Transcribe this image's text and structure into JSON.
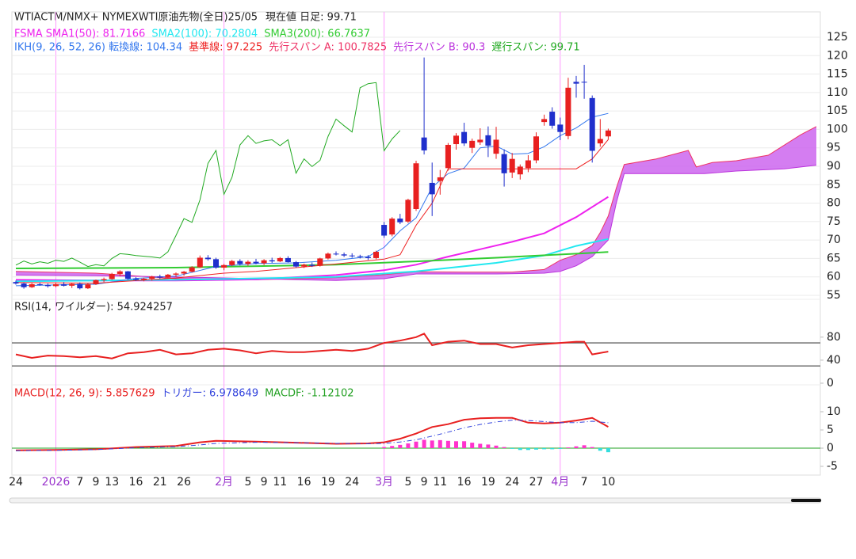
{
  "chart_data": [
    {
      "type": "candlestick",
      "title": "WTIACTM/NMX+ NYMEXWTI原油先物(全日)25/05",
      "price_label": "現在値 日足: 99.71",
      "categories": [
        "24",
        null,
        null,
        null,
        null,
        "2026",
        null,
        null,
        "7",
        null,
        "9",
        null,
        "13",
        null,
        null,
        "16",
        null,
        null,
        "21",
        null,
        null,
        "26",
        null,
        null,
        null,
        null,
        "2月",
        null,
        null,
        "5",
        null,
        "9",
        null,
        "11",
        null,
        null,
        "16",
        null,
        null,
        "19",
        null,
        null,
        "24",
        null,
        null,
        null,
        "3月",
        null,
        null,
        "5",
        null,
        "9",
        null,
        "11",
        null,
        null,
        "16",
        null,
        null,
        "19",
        null,
        null,
        "24",
        null,
        null,
        "27",
        null,
        null,
        "4月",
        null,
        null,
        "7",
        null,
        null,
        "10"
      ],
      "open": [
        58.6,
        58.2,
        57.2,
        58.0,
        57.8,
        57.5,
        58.0,
        57.6,
        58.1,
        56.9,
        58.0,
        59.1,
        59.4,
        60.8,
        61.5,
        59.5,
        59.2,
        59.5,
        60.1,
        59.8,
        60.6,
        60.9,
        61.4,
        62.6,
        65.2,
        64.8,
        62.5,
        63.2,
        64.3,
        63.5,
        64.1,
        63.7,
        64.5,
        64.2,
        65.1,
        64.0,
        62.8,
        63.3,
        63.0,
        65.0,
        66.3,
        66.1,
        65.8,
        65.6,
        65.4,
        65.1,
        74.1,
        71.5,
        75.8,
        75.0,
        78.4,
        97.8,
        85.5,
        86.0,
        89.5,
        96.0,
        99.3,
        95.0,
        96.5,
        98.4,
        93.4,
        93.3,
        88.3,
        87.8,
        89.5,
        91.6,
        102.0,
        104.8,
        101.3,
        98.2,
        112.9,
        112.9,
        108.5,
        96.2,
        98.1
      ],
      "high": [
        59.0,
        58.4,
        58.3,
        58.5,
        58.2,
        58.3,
        58.6,
        58.4,
        58.5,
        58.3,
        59.3,
        59.8,
        61.1,
        61.8,
        61.6,
        59.9,
        59.8,
        60.3,
        60.6,
        60.8,
        61.2,
        61.6,
        62.9,
        65.8,
        65.9,
        65.2,
        63.5,
        64.6,
        64.8,
        64.5,
        64.9,
        64.8,
        65.2,
        65.4,
        65.6,
        64.3,
        63.6,
        63.9,
        65.2,
        66.6,
        66.9,
        66.6,
        66.4,
        66.0,
        65.9,
        67.1,
        74.9,
        76.2,
        77.1,
        81.2,
        91.5,
        119.5,
        91.0,
        89.0,
        96.3,
        99.0,
        101.8,
        97.5,
        100.3,
        100.8,
        100.7,
        94.6,
        93.6,
        90.5,
        93.0,
        99.2,
        104.0,
        106.0,
        103.2,
        114.0,
        114.5,
        117.5,
        109.2,
        102.8,
        100.2
      ],
      "low": [
        57.9,
        56.8,
        57.0,
        57.6,
        57.1,
        57.2,
        57.4,
        57.0,
        56.6,
        56.7,
        57.8,
        58.6,
        59.2,
        60.2,
        59.2,
        58.9,
        58.8,
        59.0,
        59.5,
        59.6,
        60.0,
        60.3,
        61.2,
        62.4,
        64.4,
        62.2,
        61.8,
        62.9,
        63.1,
        63.0,
        63.4,
        63.2,
        63.8,
        64.0,
        63.9,
        62.5,
        62.4,
        62.7,
        62.8,
        64.7,
        65.8,
        65.4,
        65.2,
        65.0,
        64.6,
        64.8,
        70.6,
        71.0,
        74.3,
        74.6,
        77.9,
        93.2,
        76.5,
        82.3,
        88.8,
        94.5,
        95.5,
        93.6,
        95.8,
        92.5,
        92.0,
        84.5,
        86.8,
        86.4,
        88.4,
        90.8,
        101.0,
        100.2,
        97.1,
        97.3,
        108.6,
        108.3,
        91.0,
        95.3,
        97.2
      ],
      "close": [
        58.2,
        57.2,
        58.0,
        57.8,
        57.5,
        58.0,
        57.6,
        58.1,
        56.9,
        58.0,
        59.1,
        59.4,
        60.8,
        61.5,
        59.5,
        59.2,
        59.5,
        60.1,
        59.8,
        60.6,
        60.9,
        61.4,
        62.6,
        65.2,
        64.8,
        62.5,
        63.2,
        64.3,
        63.5,
        64.1,
        63.7,
        64.5,
        64.2,
        65.1,
        64.0,
        62.8,
        63.3,
        63.0,
        65.0,
        66.3,
        66.1,
        65.8,
        65.6,
        65.4,
        65.1,
        66.8,
        71.2,
        75.8,
        74.8,
        80.9,
        90.8,
        94.3,
        82.4,
        87.0,
        95.8,
        98.3,
        96.2,
        96.9,
        97.2,
        95.6,
        97.2,
        88.1,
        92.0,
        89.9,
        91.6,
        98.1,
        102.8,
        101.0,
        99.3,
        111.3,
        112.4,
        112.7,
        94.2,
        97.4,
        99.71
      ],
      "up_color": "#e82020",
      "down_color": "#1f2fcc",
      "ylim": [
        54.35,
        131.87
      ],
      "yticks": [
        55,
        60,
        65,
        70,
        75,
        80,
        85,
        90,
        95,
        100,
        105,
        110,
        115,
        120,
        125
      ],
      "grid": true,
      "series": [
        {
          "name": "FSMA SMA1(50): 81.7166",
          "color": "#ee22ee",
          "width": 2,
          "x": [
            0,
            10,
            20,
            30,
            40,
            46,
            50,
            54,
            58,
            62,
            66,
            70,
            74
          ],
          "values": [
            59.2,
            59.0,
            59.0,
            59.3,
            60.5,
            61.8,
            63.3,
            65.5,
            67.5,
            69.5,
            71.8,
            76.2,
            81.7166
          ]
        },
        {
          "name": "SMA2(100): 70.2804",
          "color": "#22e8f0",
          "width": 2,
          "x": [
            0,
            20,
            40,
            50,
            60,
            66,
            70,
            74
          ],
          "values": [
            58.8,
            59.2,
            60.0,
            61.5,
            63.8,
            65.8,
            68.4,
            70.2804
          ]
        },
        {
          "name": "SMA3(200): 66.7637",
          "color": "#33cc33",
          "width": 2,
          "x": [
            0,
            20,
            40,
            50,
            60,
            70,
            74
          ],
          "values": [
            62.3,
            62.5,
            63.3,
            64.2,
            65.2,
            66.3,
            66.7637
          ]
        }
      ],
      "ichimoku": {
        "tenkan": {
          "name": "IKH(9, 26, 52, 26) 転換線: 104.34",
          "color": "#3377ee",
          "x": [
            0,
            5,
            10,
            15,
            20,
            25,
            30,
            35,
            40,
            44,
            46,
            48,
            50,
            52,
            54,
            56,
            58,
            60,
            62,
            64,
            66,
            68,
            70,
            72,
            74
          ],
          "values": [
            57.6,
            57.8,
            58.0,
            59.6,
            60.2,
            62.8,
            63.6,
            63.8,
            64.5,
            65.5,
            68.0,
            72.5,
            76.0,
            84.3,
            88.0,
            89.5,
            95.0,
            95.5,
            93.3,
            93.5,
            95.3,
            98.3,
            100.4,
            103.3,
            104.34
          ]
        },
        "kijun": {
          "name": "基準線: 97.225",
          "color": "#ee2222",
          "x": [
            0,
            10,
            20,
            26,
            30,
            40,
            46,
            48,
            50,
            52,
            54,
            70,
            72,
            74
          ],
          "values": [
            58.5,
            58.3,
            59.7,
            61.0,
            61.5,
            63.5,
            64.8,
            66.0,
            74.0,
            80.0,
            89.3,
            89.3,
            92.0,
            97.225
          ]
        },
        "senkou_a": {
          "name": "先行スパン A: 100.7825",
          "color": "#ee3366",
          "x": [
            0,
            10,
            20,
            30,
            40,
            46,
            50,
            56,
            62,
            66,
            68,
            70,
            72,
            73,
            74,
            75,
            76,
            80,
            84,
            85,
            87,
            90,
            94,
            98,
            100
          ],
          "values": [
            61.5,
            61.0,
            59.5,
            59.2,
            59.8,
            60.6,
            61.4,
            61.3,
            61.3,
            62.0,
            64.5,
            66.0,
            68.5,
            72.0,
            76.5,
            84.0,
            90.5,
            92.0,
            94.3,
            89.8,
            91.0,
            91.5,
            93.0,
            98.5,
            100.7825
          ]
        },
        "senkou_b": {
          "name": "先行スパン B: 90.3",
          "color": "#bb33dd",
          "x": [
            0,
            10,
            20,
            30,
            40,
            46,
            50,
            60,
            66,
            68,
            70,
            72,
            74,
            75,
            76,
            86,
            90,
            96,
            100
          ],
          "values": [
            60.5,
            60.3,
            60.0,
            59.5,
            59.0,
            59.5,
            60.8,
            60.8,
            61.0,
            61.5,
            63.0,
            65.5,
            70.0,
            80.0,
            88.0,
            88.0,
            88.7,
            89.3,
            90.3
          ]
        },
        "chikou": {
          "name": "遅行スパン: 99.71",
          "color": "#22aa22",
          "values": [
            63.2,
            64.3,
            63.5,
            64.1,
            63.7,
            64.5,
            64.2,
            65.1,
            64.0,
            62.8,
            63.3,
            63.0,
            65.0,
            66.3,
            66.1,
            65.8,
            65.6,
            65.4,
            65.1,
            66.8,
            71.2,
            75.8,
            74.8,
            80.9,
            90.8,
            94.3,
            82.4,
            87.0,
            95.8,
            98.3,
            96.2,
            96.9,
            97.2,
            95.6,
            97.2,
            88.1,
            92.0,
            89.9,
            91.6,
            98.1,
            102.8,
            101.0,
            99.3,
            111.3,
            112.4,
            112.7,
            94.2,
            97.4,
            99.71,
            null,
            null,
            null,
            null,
            null,
            null,
            null,
            null,
            null,
            null,
            null,
            null,
            null,
            null,
            null,
            null,
            null,
            null,
            null,
            null,
            null,
            null,
            null,
            null,
            null,
            null,
            null
          ]
        }
      },
      "cloud_color": "#cc66ee"
    },
    {
      "type": "line",
      "ylim": [
        -1.4,
        143
      ],
      "yticks": [
        0,
        40,
        80
      ],
      "bands": [
        30,
        70
      ],
      "series": [
        {
          "name": "RSI(14, ワイルダー): 54.924257",
          "color": "#e82020",
          "label_color": "#222222",
          "width": 2,
          "x": [
            0,
            2,
            4,
            6,
            8,
            10,
            12,
            14,
            16,
            18,
            20,
            22,
            24,
            26,
            28,
            30,
            32,
            34,
            36,
            38,
            40,
            42,
            44,
            46,
            48,
            50,
            51,
            52,
            54,
            56,
            58,
            60,
            62,
            64,
            66,
            68,
            70,
            71,
            72,
            74
          ],
          "values": [
            50,
            44,
            48,
            47,
            45,
            47,
            43,
            52,
            54,
            58,
            50,
            52,
            58,
            60,
            57,
            52,
            56,
            54,
            54,
            56,
            58,
            56,
            60,
            70,
            74,
            80,
            86,
            66,
            72,
            74,
            68,
            68,
            62,
            66,
            68,
            70,
            72,
            72,
            50,
            54.924257
          ]
        }
      ]
    },
    {
      "type": "line",
      "ylim": [
        -7.39,
        16.96
      ],
      "yticks": [
        -5,
        0,
        5,
        10
      ],
      "series": [
        {
          "name": "MACD(12, 26, 9): 5.857629",
          "color": "#e82020",
          "width": 2,
          "x": [
            0,
            5,
            10,
            15,
            20,
            23,
            25,
            30,
            35,
            40,
            44,
            46,
            48,
            50,
            52,
            54,
            56,
            58,
            60,
            62,
            64,
            66,
            68,
            70,
            72,
            74
          ],
          "values": [
            -0.6,
            -0.5,
            -0.3,
            0.3,
            0.6,
            1.6,
            2.0,
            1.8,
            1.5,
            1.2,
            1.3,
            1.6,
            2.6,
            4.0,
            5.8,
            6.6,
            7.8,
            8.2,
            8.3,
            8.3,
            7.0,
            6.8,
            7.0,
            7.6,
            8.3,
            5.857629
          ]
        },
        {
          "name": "トリガー: 6.978649",
          "color": "#3344dd",
          "width": 1,
          "dash": true,
          "x": [
            0,
            5,
            10,
            15,
            20,
            23,
            25,
            30,
            35,
            40,
            44,
            46,
            48,
            50,
            52,
            54,
            56,
            58,
            60,
            62,
            64,
            66,
            68,
            70,
            72,
            74
          ],
          "values": [
            -0.7,
            -0.6,
            -0.4,
            0.1,
            0.4,
            0.9,
            1.3,
            1.6,
            1.5,
            1.3,
            1.2,
            1.3,
            1.7,
            2.3,
            3.3,
            4.4,
            5.6,
            6.5,
            7.2,
            7.7,
            7.6,
            7.3,
            7.0,
            7.0,
            7.4,
            6.978649
          ]
        },
        {
          "name": "MACDF: -1.12102",
          "type": "bar",
          "color": "#22a022",
          "bar_color": "#ff33cc",
          "negative_color": "#33dddd",
          "x": [
            46,
            47,
            48,
            49,
            50,
            51,
            52,
            53,
            54,
            55,
            56,
            57,
            58,
            59,
            60,
            61,
            62,
            63,
            64,
            65,
            66,
            67,
            68,
            69,
            70,
            71,
            72,
            73,
            74
          ],
          "values": [
            0.3,
            0.6,
            0.9,
            1.3,
            1.8,
            2.3,
            2.1,
            2.2,
            2.0,
            1.9,
            1.9,
            1.5,
            1.2,
            1.0,
            0.7,
            0.3,
            -0.2,
            -0.5,
            -0.5,
            -0.4,
            -0.3,
            -0.3,
            -0.2,
            0.2,
            0.5,
            0.8,
            0.3,
            -0.7,
            -1.12102
          ]
        }
      ]
    }
  ]
}
